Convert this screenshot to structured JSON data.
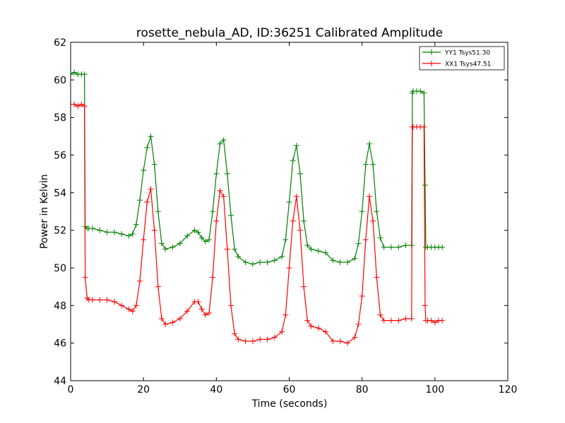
{
  "chart_data": {
    "type": "line",
    "title": "rosette_nebula_AD, ID:36251 Calibrated Amplitude",
    "xlabel": "Time (seconds)",
    "ylabel": "Power in Kelvin",
    "xlim": [
      0,
      120
    ],
    "ylim": [
      44,
      62
    ],
    "xticks": [
      0,
      20,
      40,
      60,
      80,
      100,
      120
    ],
    "yticks": [
      44,
      46,
      48,
      50,
      52,
      54,
      56,
      58,
      60,
      62
    ],
    "grid": false,
    "legend_position": "top-right",
    "marker": "plus",
    "series": [
      {
        "name": "YY1 Tsys51.30",
        "color": "#008000",
        "x": [
          0,
          1,
          2,
          3,
          3.8,
          4.0,
          4.5,
          5,
          6,
          8,
          10,
          12,
          14,
          16,
          17,
          18,
          19,
          20,
          21,
          22,
          23,
          24,
          25,
          26,
          28,
          30,
          32,
          34,
          35,
          36,
          37,
          38,
          39,
          40,
          41,
          42,
          43,
          44,
          45,
          46,
          48,
          50,
          52,
          54,
          56,
          58,
          59,
          60,
          61,
          62,
          63,
          64,
          65,
          66,
          68,
          70,
          72,
          74,
          76,
          78,
          79,
          80,
          81,
          82,
          83,
          84,
          85,
          86,
          88,
          90,
          92,
          93.6,
          93.8,
          94,
          95,
          96,
          97,
          97.3,
          97.5,
          98,
          99,
          100,
          101,
          102
        ],
        "y": [
          60.3,
          60.4,
          60.3,
          60.3,
          60.3,
          52.2,
          52.1,
          52.1,
          52.1,
          52.0,
          51.9,
          51.9,
          51.8,
          51.7,
          51.8,
          52.3,
          53.6,
          55.2,
          56.4,
          57.0,
          55.5,
          53.0,
          51.3,
          51.0,
          51.1,
          51.3,
          51.7,
          52.0,
          51.9,
          51.6,
          51.4,
          51.5,
          53.0,
          55.0,
          56.6,
          56.8,
          55.0,
          52.8,
          51.0,
          50.6,
          50.3,
          50.2,
          50.3,
          50.3,
          50.4,
          50.6,
          51.5,
          53.5,
          55.7,
          56.5,
          55.0,
          52.5,
          51.2,
          51.0,
          50.9,
          50.8,
          50.4,
          50.3,
          50.3,
          50.5,
          51.3,
          53.0,
          55.5,
          56.6,
          55.5,
          53.0,
          51.6,
          51.1,
          51.1,
          51.1,
          51.2,
          51.2,
          59.3,
          59.4,
          59.4,
          59.4,
          59.3,
          54.4,
          51.1,
          51.1,
          51.1,
          51.1,
          51.1,
          51.1
        ]
      },
      {
        "name": "XX1 Tsys47.51",
        "color": "#ff0000",
        "x": [
          0,
          1,
          2,
          3,
          3.8,
          4.0,
          4.5,
          5,
          6,
          8,
          10,
          12,
          14,
          16,
          17,
          18,
          19,
          20,
          21,
          22,
          23,
          24,
          25,
          26,
          28,
          30,
          32,
          34,
          35,
          36,
          37,
          38,
          39,
          40,
          41,
          42,
          43,
          44,
          45,
          46,
          48,
          50,
          52,
          54,
          56,
          58,
          59,
          60,
          61,
          62,
          63,
          64,
          65,
          66,
          68,
          70,
          72,
          74,
          76,
          78,
          79,
          80,
          81,
          82,
          83,
          84,
          85,
          86,
          88,
          90,
          92,
          93.6,
          93.8,
          94,
          95,
          96,
          97,
          97.3,
          97.5,
          98,
          99,
          100,
          101,
          102
        ],
        "y": [
          58.7,
          58.7,
          58.6,
          58.7,
          58.6,
          49.5,
          48.4,
          48.3,
          48.3,
          48.3,
          48.3,
          48.2,
          48.0,
          47.8,
          47.7,
          48.0,
          49.3,
          51.5,
          53.5,
          54.2,
          52.0,
          49.0,
          47.3,
          47.0,
          47.1,
          47.3,
          47.7,
          48.2,
          48.2,
          47.8,
          47.5,
          47.6,
          49.5,
          52.5,
          54.1,
          53.8,
          51.0,
          48.0,
          46.5,
          46.2,
          46.1,
          46.1,
          46.2,
          46.2,
          46.3,
          46.6,
          47.5,
          50.0,
          52.5,
          53.8,
          52.0,
          49.0,
          47.2,
          46.9,
          46.8,
          46.6,
          46.1,
          46.1,
          46.0,
          46.3,
          47.0,
          48.5,
          51.5,
          53.8,
          52.5,
          49.5,
          47.5,
          47.2,
          47.2,
          47.2,
          47.3,
          47.3,
          57.5,
          57.5,
          57.5,
          57.5,
          57.5,
          48.0,
          47.2,
          47.2,
          47.2,
          47.1,
          47.2,
          47.2
        ]
      }
    ]
  }
}
